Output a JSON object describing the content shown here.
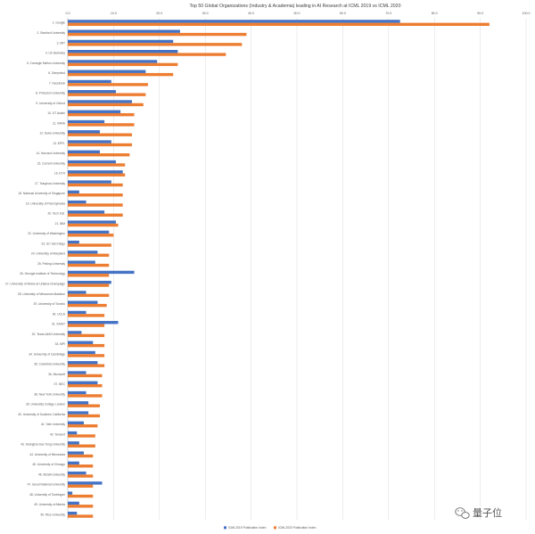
{
  "chart_data": {
    "type": "bar",
    "orientation": "horizontal",
    "title": "Top 50 Global Organizations (Industry & Academia) leading in AI Research at ICML 2019 vs ICML 2020",
    "xlabel": "",
    "ylabel": "",
    "xlim": [
      0,
      100
    ],
    "xticks": [
      "0.0",
      "10.0",
      "20.0",
      "30.0",
      "40.0",
      "50.0",
      "60.0",
      "70.0",
      "80.0",
      "90.0",
      "100.0"
    ],
    "grid": true,
    "legend_position": "bottom",
    "categories": [
      "1. Google",
      "2. Stanford University",
      "3. MIT",
      "4. UC Berkeley",
      "5. Carnegie Mellon University",
      "6. Deepmind",
      "7. Facebook",
      "8. Princeton University",
      "9. University of Oxford",
      "10. UT Austin",
      "11. INRIA",
      "12. Duke University",
      "13. EPFL",
      "14. Harvard University",
      "15. Cornell University",
      "16. ETH",
      "17. Tsinghua University",
      "18. National University of Singapore",
      "19. University of Pennsylvania",
      "20. Tech Inst.",
      "21. IBM",
      "22. University of Washington",
      "23. UC San Diego",
      "24. University of Maryland",
      "25. Peking University",
      "26. Georgia Institute of Technology",
      "27. University of Illinois at Urbana-Champaign",
      "28. University of Wisconsin-Madison",
      "29. University of Toronto",
      "30. UCLA",
      "31. KAIST",
      "32. Texas A&M University",
      "33. MPI",
      "34. University of Cambridge",
      "35. Columbia University",
      "36. Microsoft",
      "37. NEC",
      "38. New York University",
      "39. University College London",
      "40. University of Southern California",
      "41. Yale University",
      "42. Tencent",
      "43. Shanghai Jiao Tong University",
      "44. University of Minnesota",
      "45. University of Chicago",
      "46. McGill University",
      "47. Seoul National University",
      "48. University of Tuebingen",
      "49. University of Alberta",
      "50. Rice University"
    ],
    "series": [
      {
        "name": "ICML2019 Publication Index",
        "color": "#4472c4",
        "values": [
          72.5,
          24.5,
          23.0,
          24.0,
          19.5,
          17.0,
          9.5,
          10.5,
          14.0,
          11.5,
          8.0,
          7.0,
          9.5,
          7.0,
          10.5,
          12.0,
          9.5,
          2.5,
          4.0,
          8.0,
          10.5,
          9.0,
          2.5,
          6.5,
          6.0,
          14.5,
          9.5,
          4.0,
          6.5,
          4.0,
          11.0,
          3.0,
          5.5,
          6.0,
          6.5,
          4.0,
          6.5,
          4.0,
          4.5,
          4.5,
          3.5,
          2.0,
          2.5,
          3.5,
          2.5,
          4.0,
          7.5,
          1.0,
          2.5,
          2.0
        ]
      },
      {
        "name": "ICML2020 Publication Index",
        "color": "#ed7d31",
        "values": [
          92.0,
          39.0,
          38.0,
          34.5,
          24.0,
          23.0,
          17.5,
          17.0,
          16.5,
          14.5,
          14.5,
          14.0,
          14.0,
          13.5,
          12.5,
          12.5,
          12.0,
          12.0,
          12.0,
          12.0,
          11.0,
          10.0,
          9.5,
          9.0,
          9.0,
          9.0,
          9.0,
          9.0,
          8.5,
          8.0,
          8.0,
          8.0,
          8.0,
          8.0,
          8.0,
          7.5,
          7.5,
          7.5,
          7.0,
          7.0,
          6.5,
          6.0,
          6.0,
          5.5,
          5.5,
          5.5,
          5.5,
          5.5,
          5.5,
          5.5
        ]
      }
    ]
  },
  "watermark": {
    "text": "量子位",
    "icon": "wechat-icon"
  }
}
